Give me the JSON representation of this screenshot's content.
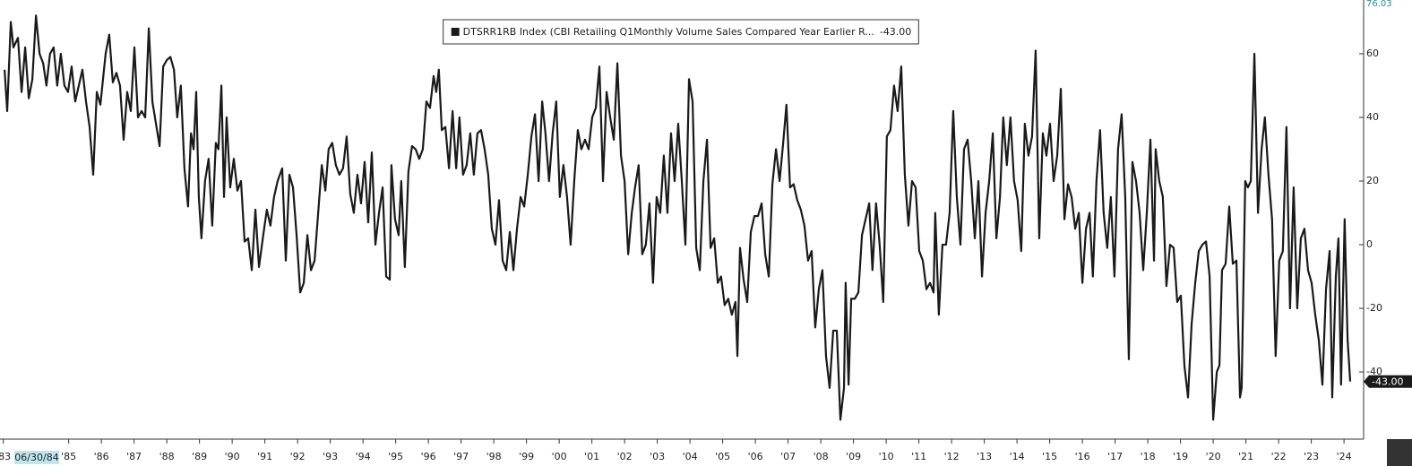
{
  "chart_data": {
    "type": "line",
    "series": [
      {
        "name": "DTSRR1RB Index (CBI Retailing Q1Monthly Volume Sales Compared Year Earlier R...",
        "color": "#1a1a1a",
        "values": [
          55,
          42,
          70,
          62,
          65,
          48,
          62,
          46,
          52,
          72,
          60,
          57,
          50,
          60,
          62,
          50,
          60,
          50,
          48,
          56,
          45,
          50,
          55,
          45,
          37,
          22,
          48,
          44,
          60,
          66,
          51,
          54,
          50,
          33,
          48,
          42,
          62,
          40,
          42,
          40,
          68,
          45,
          38,
          31,
          56,
          58,
          59,
          55,
          40,
          50,
          24,
          12,
          35,
          30,
          48,
          15,
          2,
          20,
          27,
          6,
          32,
          30,
          50,
          15,
          40,
          18,
          27,
          17,
          20,
          1,
          2,
          -8,
          11,
          -7,
          3,
          11,
          6,
          15,
          20,
          24,
          -5,
          22,
          18,
          3,
          -15,
          -12,
          3,
          -8,
          -5,
          10,
          25,
          17,
          30,
          32,
          25,
          22,
          24,
          34,
          16,
          10,
          22,
          13,
          26,
          7,
          29,
          0,
          10,
          18,
          -10,
          -11,
          25,
          8,
          3,
          20,
          -7,
          23,
          31,
          30,
          27,
          30,
          45,
          43,
          53,
          48,
          55,
          36,
          37,
          24,
          42,
          24,
          40,
          22,
          25,
          35,
          22,
          35,
          36,
          30,
          22,
          5,
          0,
          14,
          -5,
          -8,
          4,
          -8,
          5,
          15,
          12,
          22,
          34,
          41,
          20,
          45,
          35,
          20,
          35,
          45,
          15,
          25,
          15,
          0,
          20,
          36,
          30,
          33,
          30,
          40,
          43,
          56,
          20,
          48,
          40,
          33,
          57,
          28,
          20,
          -3,
          10,
          18,
          25,
          -3,
          0,
          13,
          -12,
          15,
          10,
          28,
          10,
          35,
          20,
          38,
          20,
          0,
          52,
          45,
          -1,
          -8,
          20,
          33,
          -1,
          2,
          -12,
          -10,
          -19,
          -17,
          -22,
          -18,
          -35,
          -1,
          -11,
          -18,
          4,
          9,
          9,
          13,
          -3,
          -10,
          19,
          30,
          20,
          32,
          44,
          18,
          19,
          14,
          11,
          6,
          -5,
          -2,
          -26,
          -14,
          -8,
          -35,
          -45,
          -27,
          -27,
          -55,
          -45,
          -12,
          -44,
          -17,
          -17,
          -15,
          3,
          8,
          13,
          -8,
          13,
          0,
          -18,
          34,
          36,
          50,
          42,
          56,
          22,
          6,
          20,
          18,
          -2,
          -5,
          -14,
          -12,
          -15,
          10,
          -22,
          0,
          0,
          10,
          42,
          15,
          0,
          30,
          33,
          20,
          2,
          20,
          -10,
          10,
          20,
          35,
          2,
          15,
          40,
          25,
          40,
          20,
          14,
          -2,
          38,
          28,
          34,
          61,
          2,
          35,
          28,
          38,
          20,
          28,
          49,
          8,
          19,
          15,
          5,
          10,
          -12,
          5,
          10,
          -10,
          20,
          36,
          10,
          -1,
          15,
          -10,
          30,
          41,
          15,
          -36,
          26,
          20,
          10,
          -8,
          10,
          33,
          -5,
          30,
          20,
          15,
          -13,
          0,
          -1,
          -18,
          -16,
          -38,
          -48,
          -25,
          -12,
          -2,
          0,
          1,
          -10,
          -55,
          -40,
          -38,
          -8,
          -6,
          12,
          -6,
          -5,
          -48,
          -45,
          20,
          18,
          20,
          60,
          10,
          30,
          40,
          22,
          8,
          -35,
          -5,
          -2,
          37,
          -20,
          18,
          -20,
          2,
          5,
          -8,
          -12,
          -22,
          -30,
          -44,
          -14,
          -2,
          -48,
          -10,
          2,
          -44,
          8,
          -30,
          -43
        ]
      }
    ],
    "x": [
      1983.04,
      1983.12,
      1983.23,
      1983.31,
      1983.45,
      1983.56,
      1983.67,
      1983.78,
      1983.89,
      1984.0,
      1984.11,
      1984.22,
      1984.32,
      1984.43,
      1984.54,
      1984.65,
      1984.76,
      1984.87,
      1984.98,
      1985.09,
      1985.2,
      1985.31,
      1985.42,
      1985.53,
      1985.64,
      1985.75,
      1985.86,
      1985.97,
      1986.13,
      1986.24,
      1986.35,
      1986.46,
      1986.57,
      1986.68,
      1986.79,
      1986.9,
      1987.01,
      1987.12,
      1987.23,
      1987.34,
      1987.45,
      1987.56,
      1987.67,
      1987.78,
      1987.89,
      1988.0,
      1988.11,
      1988.22,
      1988.32,
      1988.43,
      1988.54,
      1988.65,
      1988.74,
      1988.82,
      1988.9,
      1988.98,
      1989.06,
      1989.17,
      1989.28,
      1989.39,
      1989.5,
      1989.58,
      1989.67,
      1989.75,
      1989.83,
      1989.94,
      1990.05,
      1990.16,
      1990.27,
      1990.38,
      1990.49,
      1990.6,
      1990.71,
      1990.82,
      1990.95,
      1991.06,
      1991.17,
      1991.28,
      1991.39,
      1991.53,
      1991.64,
      1991.75,
      1991.86,
      1991.97,
      1992.08,
      1992.19,
      1992.3,
      1992.41,
      1992.52,
      1992.63,
      1992.74,
      1992.85,
      1992.95,
      1993.06,
      1993.17,
      1993.28,
      1993.39,
      1993.5,
      1993.61,
      1993.72,
      1993.83,
      1993.94,
      1994.05,
      1994.16,
      1994.27,
      1994.38,
      1994.49,
      1994.6,
      1994.71,
      1994.82,
      1994.87,
      1994.98,
      1995.09,
      1995.17,
      1995.28,
      1995.39,
      1995.5,
      1995.61,
      1995.72,
      1995.83,
      1995.94,
      1996.05,
      1996.16,
      1996.24,
      1996.32,
      1996.41,
      1996.52,
      1996.63,
      1996.74,
      1996.85,
      1996.95,
      1997.06,
      1997.17,
      1997.28,
      1997.39,
      1997.5,
      1997.61,
      1997.72,
      1997.83,
      1997.94,
      1998.05,
      1998.16,
      1998.27,
      1998.38,
      1998.49,
      1998.6,
      1998.71,
      1998.82,
      1998.93,
      1999.04,
      1999.15,
      1999.26,
      1999.37,
      1999.48,
      1999.58,
      1999.69,
      1999.8,
      1999.91,
      2000.02,
      2000.13,
      2000.24,
      2000.35,
      2000.46,
      2000.57,
      2000.68,
      2000.79,
      2000.9,
      2001.01,
      2001.12,
      2001.23,
      2001.34,
      2001.45,
      2001.56,
      2001.67,
      2001.78,
      2001.89,
      2002.0,
      2002.11,
      2002.22,
      2002.32,
      2002.43,
      2002.54,
      2002.65,
      2002.76,
      2002.87,
      2002.98,
      2003.09,
      2003.2,
      2003.31,
      2003.42,
      2003.53,
      2003.64,
      2003.75,
      2003.86,
      2003.97,
      2004.08,
      2004.19,
      2004.3,
      2004.41,
      2004.52,
      2004.63,
      2004.74,
      2004.85,
      2004.95,
      2005.06,
      2005.17,
      2005.28,
      2005.39,
      2005.45,
      2005.53,
      2005.64,
      2005.75,
      2005.86,
      2005.97,
      2006.08,
      2006.19,
      2006.3,
      2006.41,
      2006.52,
      2006.63,
      2006.74,
      2006.85,
      2006.95,
      2007.06,
      2007.17,
      2007.28,
      2007.39,
      2007.5,
      2007.61,
      2007.72,
      2007.83,
      2007.94,
      2008.05,
      2008.16,
      2008.27,
      2008.38,
      2008.49,
      2008.6,
      2008.71,
      2008.76,
      2008.85,
      2008.93,
      2009.04,
      2009.15,
      2009.26,
      2009.37,
      2009.48,
      2009.58,
      2009.69,
      2009.8,
      2009.91,
      2010.02,
      2010.13,
      2010.24,
      2010.35,
      2010.46,
      2010.57,
      2010.68,
      2010.79,
      2010.9,
      2011.01,
      2011.12,
      2011.23,
      2011.34,
      2011.45,
      2011.5,
      2011.61,
      2011.72,
      2011.83,
      2011.94,
      2012.05,
      2012.16,
      2012.27,
      2012.38,
      2012.49,
      2012.6,
      2012.71,
      2012.82,
      2012.93,
      2013.04,
      2013.15,
      2013.26,
      2013.37,
      2013.48,
      2013.58,
      2013.69,
      2013.8,
      2013.91,
      2014.02,
      2014.13,
      2014.24,
      2014.35,
      2014.46,
      2014.57,
      2014.68,
      2014.79,
      2014.9,
      2015.01,
      2015.12,
      2015.23,
      2015.34,
      2015.45,
      2015.56,
      2015.67,
      2015.78,
      2015.89,
      2016.0,
      2016.11,
      2016.22,
      2016.32,
      2016.43,
      2016.54,
      2016.65,
      2016.76,
      2016.87,
      2016.98,
      2017.09,
      2017.2,
      2017.31,
      2017.42,
      2017.53,
      2017.64,
      2017.75,
      2017.86,
      2017.97,
      2018.08,
      2018.19,
      2018.24,
      2018.35,
      2018.46,
      2018.57,
      2018.68,
      2018.79,
      2018.9,
      2019.01,
      2019.12,
      2019.23,
      2019.34,
      2019.45,
      2019.56,
      2019.67,
      2019.78,
      2019.89,
      2020.0,
      2020.11,
      2020.19,
      2020.27,
      2020.38,
      2020.49,
      2020.6,
      2020.71,
      2020.82,
      2020.87,
      2020.98,
      2021.06,
      2021.15,
      2021.26,
      2021.37,
      2021.48,
      2021.58,
      2021.69,
      2021.8,
      2021.91,
      2022.02,
      2022.13,
      2022.24,
      2022.35,
      2022.46,
      2022.57,
      2022.68,
      2022.79,
      2022.9,
      2023.01,
      2023.12,
      2023.23,
      2023.34,
      2023.45,
      2023.56,
      2023.64,
      2023.75,
      2023.83,
      2023.91,
      2024.02,
      2024.11,
      2024.19
    ],
    "last_value_label": "-43.00",
    "y_max_label": "76.03",
    "cursor_date": "06/30/84",
    "xlim": [
      1982.9,
      2024.6
    ],
    "xticks": [
      {
        "value": 1983,
        "label": "'83"
      },
      {
        "value": 1985,
        "label": "'85"
      },
      {
        "value": 1986,
        "label": "'86"
      },
      {
        "value": 1987,
        "label": "'87"
      },
      {
        "value": 1988,
        "label": "'88"
      },
      {
        "value": 1989,
        "label": "'89"
      },
      {
        "value": 1990,
        "label": "'90"
      },
      {
        "value": 1991,
        "label": "'91"
      },
      {
        "value": 1992,
        "label": "'92"
      },
      {
        "value": 1993,
        "label": "'93"
      },
      {
        "value": 1994,
        "label": "'94"
      },
      {
        "value": 1995,
        "label": "'95"
      },
      {
        "value": 1996,
        "label": "'96"
      },
      {
        "value": 1997,
        "label": "'97"
      },
      {
        "value": 1998,
        "label": "'98"
      },
      {
        "value": 1999,
        "label": "'99"
      },
      {
        "value": 2000,
        "label": "'00"
      },
      {
        "value": 2001,
        "label": "'01"
      },
      {
        "value": 2002,
        "label": "'02"
      },
      {
        "value": 2003,
        "label": "'03"
      },
      {
        "value": 2004,
        "label": "'04"
      },
      {
        "value": 2005,
        "label": "'05"
      },
      {
        "value": 2006,
        "label": "'06"
      },
      {
        "value": 2007,
        "label": "'07"
      },
      {
        "value": 2008,
        "label": "'08"
      },
      {
        "value": 2009,
        "label": "'09"
      },
      {
        "value": 2010,
        "label": "'10"
      },
      {
        "value": 2011,
        "label": "'11"
      },
      {
        "value": 2012,
        "label": "'12"
      },
      {
        "value": 2013,
        "label": "'13"
      },
      {
        "value": 2014,
        "label": "'14"
      },
      {
        "value": 2015,
        "label": "'15"
      },
      {
        "value": 2016,
        "label": "'16"
      },
      {
        "value": 2017,
        "label": "'17"
      },
      {
        "value": 2018,
        "label": "'18"
      },
      {
        "value": 2019,
        "label": "'19"
      },
      {
        "value": 2020,
        "label": "'20"
      },
      {
        "value": 2021,
        "label": "'21"
      },
      {
        "value": 2022,
        "label": "'22"
      },
      {
        "value": 2023,
        "label": "'23"
      },
      {
        "value": 2024,
        "label": "'24"
      }
    ],
    "ylim": [
      -61.1,
      76.9
    ],
    "yticks": [
      -40,
      -20,
      0,
      20,
      40,
      60
    ],
    "grid": false
  }
}
